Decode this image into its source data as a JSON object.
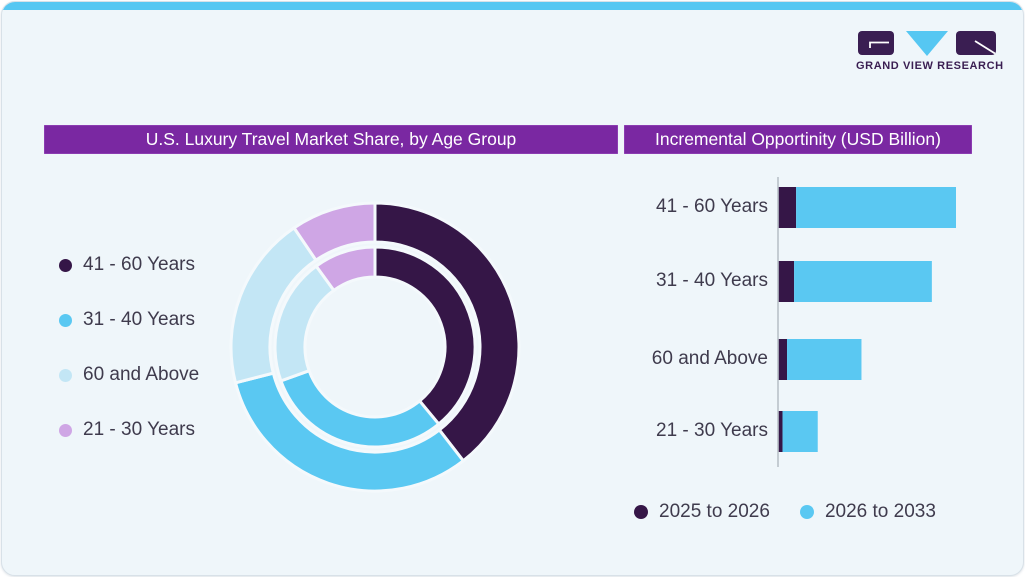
{
  "brand": {
    "name": "GRAND VIEW RESEARCH",
    "logo_icons": [
      "g-block-icon",
      "v-triangle-icon",
      "r-block-icon"
    ]
  },
  "colors": {
    "card_bg": "#EFF6FA",
    "top_strip": "#56C7F2",
    "title_bar_bg": "#7A28A2",
    "title_text": "#FFFFFF",
    "dark_purple": "#351647",
    "sky_blue": "#5AC8F2",
    "pale_blue": "#C3E6F5",
    "lavender": "#CFA6E5",
    "label_text": "#3F3B4D",
    "axis_line": "#B9C2C9",
    "segment_gap": "#F4F9FC",
    "logo_dark": "#3A1E52"
  },
  "left_panel": {
    "title": "U.S. Luxury Travel Market Share, by Age Group",
    "legend": [
      {
        "label": "41 - 60 Years",
        "color": "#351647"
      },
      {
        "label": "31 - 40 Years",
        "color": "#5AC8F2"
      },
      {
        "label": "60 and Above",
        "color": "#C3E6F5"
      },
      {
        "label": "21 - 30 Years",
        "color": "#CFA6E5"
      }
    ]
  },
  "right_panel": {
    "title": "Incremental Opportinity (USD Billion)",
    "legend": [
      {
        "label": "2025 to 2026",
        "color": "#351647"
      },
      {
        "label": "2026 to 2033",
        "color": "#5AC8F2"
      }
    ]
  },
  "chart_data": [
    {
      "type": "pie",
      "subtype": "double-ring-donut",
      "title": "U.S. Luxury Travel Market Share, by Age Group",
      "categories": [
        "41 - 60 Years",
        "31 - 40 Years",
        "60 and Above",
        "21 - 30 Years"
      ],
      "colors": [
        "#351647",
        "#5AC8F2",
        "#C3E6F5",
        "#CFA6E5"
      ],
      "rings": [
        {
          "name": "outer",
          "share_pct": [
            39.5,
            31.5,
            19.5,
            9.5
          ]
        },
        {
          "name": "inner",
          "share_pct": [
            39.0,
            30.5,
            20.5,
            10.0
          ]
        }
      ],
      "data_labels_shown": false,
      "values_estimated_from_arc_angles": true,
      "legend_position": "left"
    },
    {
      "type": "bar",
      "orientation": "horizontal",
      "stacked": true,
      "title": "Incremental Opportinity (USD Billion)",
      "categories": [
        "41 - 60 Years",
        "31 - 40 Years",
        "60 and Above",
        "21 - 30 Years"
      ],
      "series": [
        {
          "name": "2025 to 2026",
          "color": "#351647",
          "values": [
            1.8,
            1.6,
            0.9,
            0.45
          ]
        },
        {
          "name": "2026 to 2033",
          "color": "#5AC8F2",
          "values": [
            15.9,
            13.7,
            7.4,
            3.5
          ]
        }
      ],
      "axis_ticks_shown": false,
      "values_estimated_from_bar_lengths": true,
      "legend_position": "bottom"
    }
  ]
}
